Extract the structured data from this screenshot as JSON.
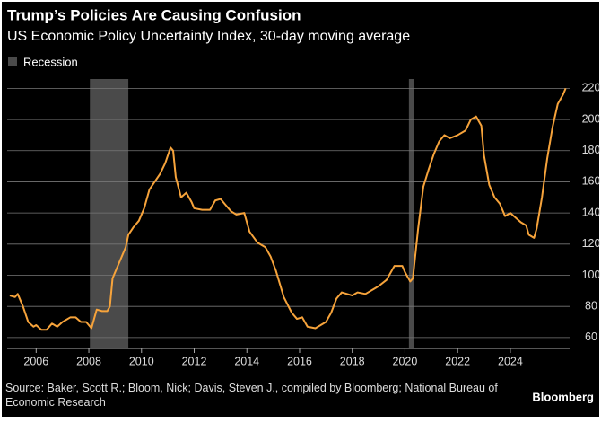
{
  "chart_data": {
    "type": "line",
    "title": "Trump’s Policies Are Causing Confusion",
    "subtitle": "US Economic Policy Uncertainty Index, 30-day moving average",
    "source": "Source: Baker, Scott R.; Bloom, Nick; Davis, Steven J., compiled by Bloomberg; National Bureau of Economic Research",
    "brand": "Bloomberg",
    "recession_label": "Recession",
    "recession_color": "#4a4a4a",
    "recessions": [
      [
        2008.04,
        2009.5
      ],
      [
        2020.15,
        2020.33
      ]
    ],
    "grid": true,
    "y_axis_side": "right",
    "xlim": [
      2004.9,
      2026.25
    ],
    "ylim": [
      53,
      226
    ],
    "xticks": [
      2006,
      2008,
      2010,
      2012,
      2014,
      2016,
      2018,
      2020,
      2022,
      2024
    ],
    "yticks": [
      60,
      80,
      100,
      120,
      140,
      160,
      180,
      200,
      220
    ],
    "series": [
      {
        "color": "#f6a33b",
        "x": [
          2005.0,
          2005.2,
          2005.3,
          2005.5,
          2005.7,
          2005.9,
          2006.0,
          2006.2,
          2006.4,
          2006.6,
          2006.8,
          2007.0,
          2007.3,
          2007.5,
          2007.7,
          2007.9,
          2008.1,
          2008.2,
          2008.3,
          2008.5,
          2008.7,
          2008.8,
          2008.9,
          2009.2,
          2009.4,
          2009.5,
          2009.7,
          2009.9,
          2010.1,
          2010.3,
          2010.5,
          2010.7,
          2010.9,
          2011.1,
          2011.2,
          2011.3,
          2011.5,
          2011.7,
          2011.9,
          2012.0,
          2012.3,
          2012.6,
          2012.8,
          2013.0,
          2013.2,
          2013.4,
          2013.6,
          2013.9,
          2014.1,
          2014.4,
          2014.7,
          2014.9,
          2015.1,
          2015.4,
          2015.7,
          2015.9,
          2016.1,
          2016.3,
          2016.6,
          2016.8,
          2017.0,
          2017.2,
          2017.4,
          2017.6,
          2017.8,
          2018.0,
          2018.2,
          2018.5,
          2018.8,
          2019.0,
          2019.3,
          2019.6,
          2019.9,
          2020.0,
          2020.2,
          2020.3,
          2020.5,
          2020.7,
          2020.9,
          2021.1,
          2021.3,
          2021.5,
          2021.7,
          2022.0,
          2022.3,
          2022.5,
          2022.7,
          2022.9,
          2023.0,
          2023.2,
          2023.4,
          2023.6,
          2023.8,
          2024.0,
          2024.2,
          2024.4,
          2024.6,
          2024.7,
          2024.9,
          2025.0,
          2025.2,
          2025.4,
          2025.6,
          2025.8,
          2026.0,
          2026.1
        ],
        "values": [
          87,
          86,
          88,
          80,
          70,
          67,
          68,
          65,
          65,
          69,
          67,
          70,
          73,
          73,
          70,
          70,
          66,
          72,
          78,
          77,
          77,
          80,
          98,
          110,
          118,
          126,
          131,
          135,
          143,
          155,
          160,
          165,
          172,
          182,
          180,
          163,
          150,
          153,
          147,
          143,
          142,
          142,
          148,
          149,
          145,
          141,
          139,
          140,
          128,
          121,
          118,
          112,
          103,
          86,
          76,
          72,
          73,
          67,
          66,
          68,
          70,
          76,
          85,
          89,
          88,
          87,
          89,
          88,
          91,
          93,
          97,
          106,
          106,
          102,
          96,
          98,
          130,
          157,
          168,
          178,
          186,
          190,
          188,
          190,
          193,
          200,
          202,
          196,
          177,
          158,
          150,
          146,
          138,
          140,
          137,
          134,
          132,
          126,
          124,
          130,
          150,
          175,
          195,
          210,
          216,
          220
        ]
      }
    ]
  }
}
